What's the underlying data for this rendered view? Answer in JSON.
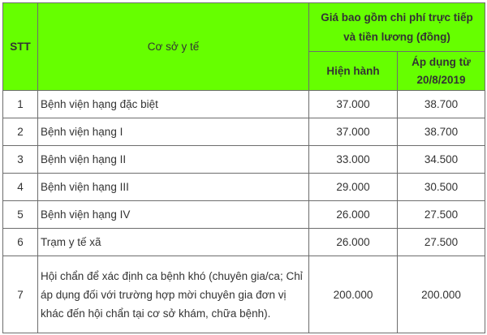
{
  "table": {
    "header": {
      "stt": "STT",
      "facility": "Cơ sở y tế",
      "price_group": "Giá bao gồm chi phí trực tiếp và tiền lương (đồng)",
      "current": "Hiện hành",
      "new": "Áp dụng từ 20/8/2019"
    },
    "header_color": "#66ff00",
    "rows": [
      {
        "stt": "1",
        "facility": "Bệnh viện hạng đặc biệt",
        "current": "37.000",
        "new": "38.700"
      },
      {
        "stt": "2",
        "facility": "Bệnh viện hạng I",
        "current": "37.000",
        "new": "38.700"
      },
      {
        "stt": "3",
        "facility": "Bệnh viện hạng II",
        "current": "33.000",
        "new": "34.500"
      },
      {
        "stt": "4",
        "facility": "Bệnh viện hạng III",
        "current": "29.000",
        "new": "30.500"
      },
      {
        "stt": "5",
        "facility": "Bệnh viện hạng IV",
        "current": "26.000",
        "new": "27.500"
      },
      {
        "stt": "6",
        "facility": "Trạm y tế xã",
        "current": "26.000",
        "new": "27.500"
      },
      {
        "stt": "7",
        "facility": "Hội chẩn để xác định ca bệnh khó (chuyên gia/ca; Chỉ áp dụng đối với trường hợp mời chuyên gia đơn vị khác đến hội chẩn tại cơ sở khám, chữa bệnh).",
        "current": "200.000",
        "new": "200.000"
      }
    ]
  }
}
